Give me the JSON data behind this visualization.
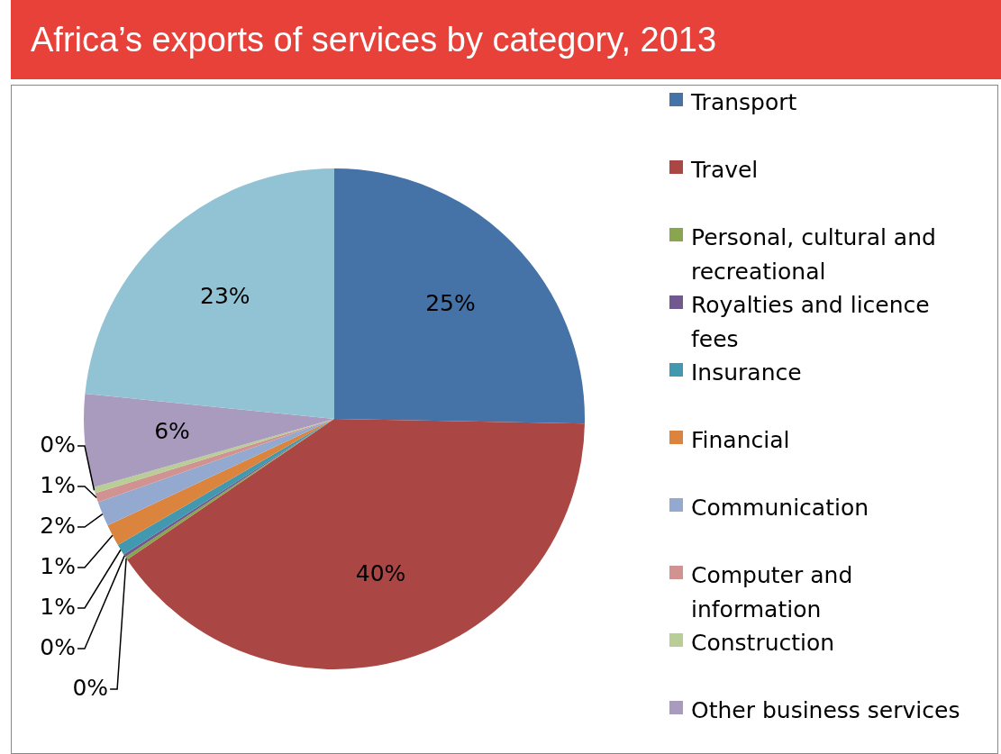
{
  "chart_data": {
    "type": "pie",
    "title": "Africa’s exports of services by category, 2013",
    "categories": [
      "Transport",
      "Travel",
      "Personal, cultural and recreational",
      "Royalties and licence fees",
      "Insurance",
      "Financial",
      "Communication",
      "Computer and information",
      "Construction",
      "Other business services",
      null
    ],
    "values": [
      25.3,
      40.2,
      0.2,
      0.2,
      0.7,
      1.4,
      1.6,
      0.6,
      0.4,
      6.0,
      23.4
    ],
    "value_labels": [
      "25%",
      "40%",
      "0%",
      "0%",
      "1%",
      "1%",
      "2%",
      "1%",
      "0%",
      "6%",
      "23%"
    ],
    "colors": [
      "#4572a7",
      "#aa4643",
      "#89a54e",
      "#71588f",
      "#4198af",
      "#db843d",
      "#93a9cf",
      "#d19392",
      "#b9cd96",
      "#a99bbd",
      "#92c3d4"
    ],
    "legend": "right"
  }
}
